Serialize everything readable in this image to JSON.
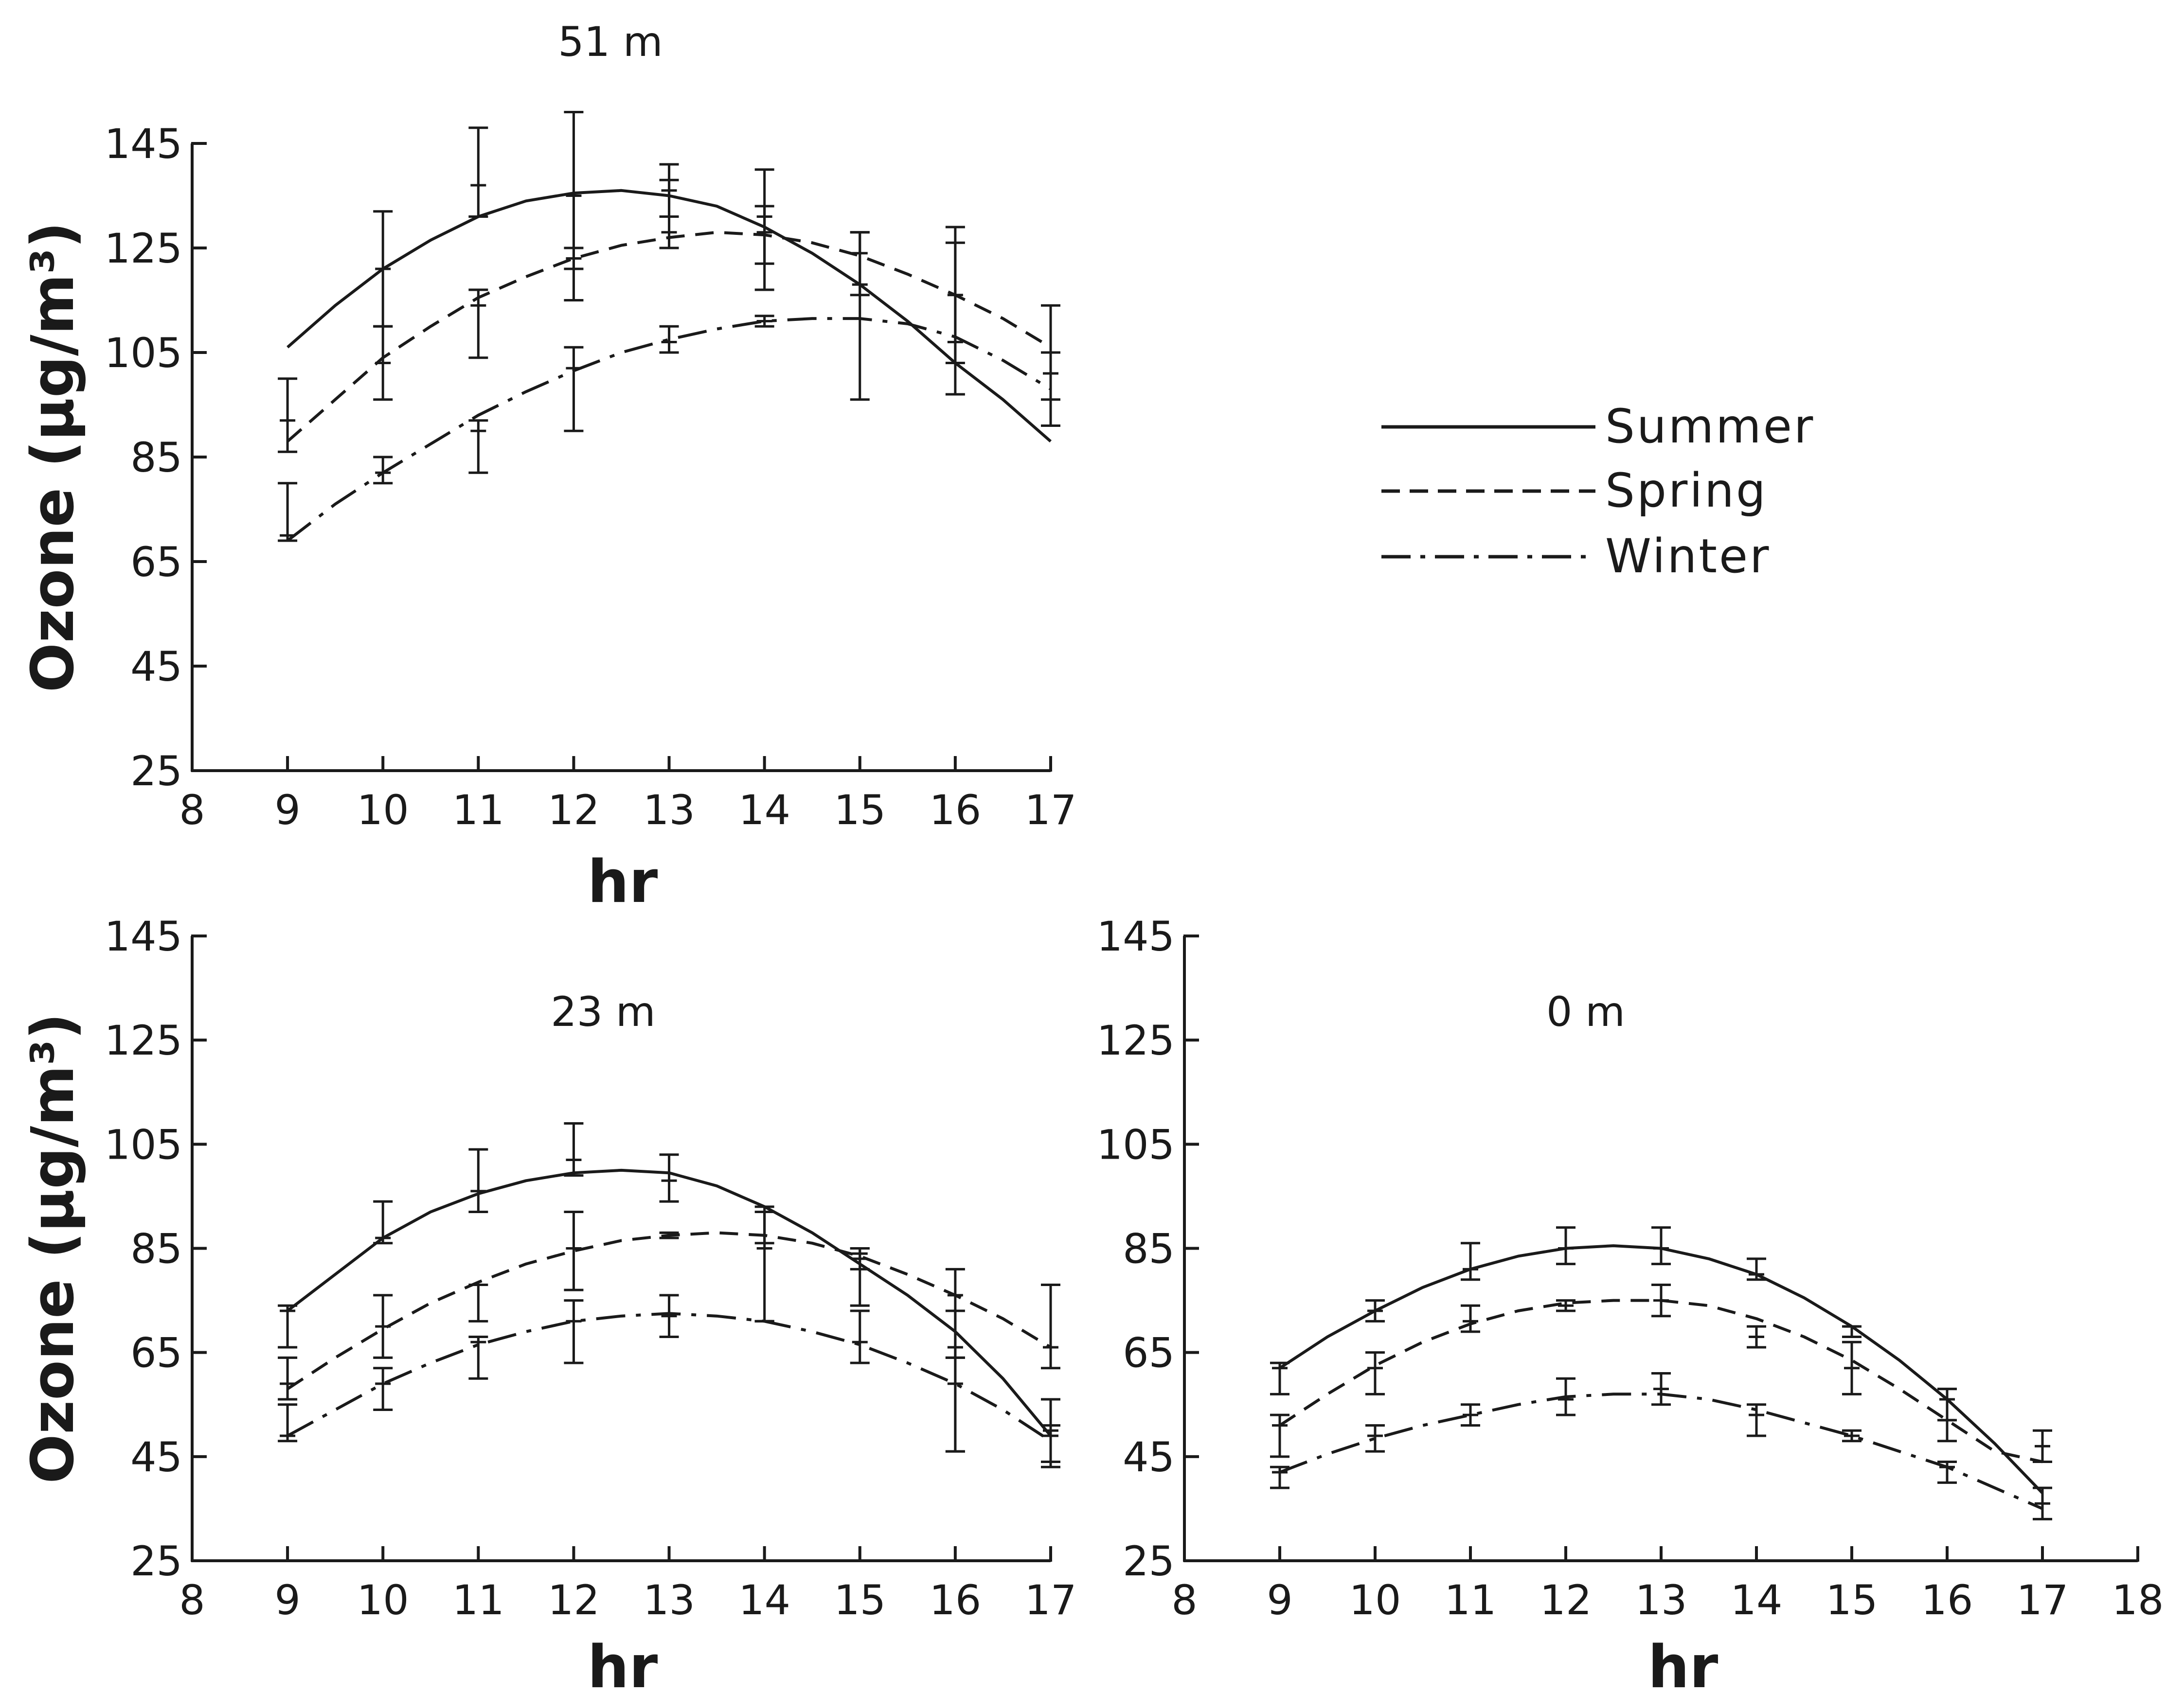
{
  "colors": {
    "ink": "#1a1a1a",
    "background": "#ffffff"
  },
  "legend": {
    "placement": "right of top panel",
    "items": [
      {
        "label": "Summer",
        "style": "solid"
      },
      {
        "label": "Spring",
        "style": "dashed"
      },
      {
        "label": "Winter",
        "style": "dash-dot"
      }
    ]
  },
  "chart_data": [
    {
      "type": "line",
      "title": "51 m",
      "xlabel": "hr",
      "ylabel": "Ozone (μg/m³)",
      "xlim": [
        8,
        17
      ],
      "ylim": [
        25,
        145
      ],
      "xticks": [
        8,
        9,
        10,
        11,
        12,
        13,
        14,
        15,
        16,
        17
      ],
      "yticks": [
        25,
        45,
        65,
        85,
        105,
        125,
        145
      ],
      "grid": false,
      "series": [
        {
          "name": "Summer",
          "style": "solid",
          "curve_x": [
            9,
            9.5,
            10,
            10.5,
            11,
            11.5,
            12,
            12.5,
            13,
            13.5,
            14,
            14.5,
            15,
            15.5,
            16,
            16.5,
            17
          ],
          "curve_y": [
            106,
            114,
            121,
            126.5,
            131,
            134,
            135.5,
            136,
            135,
            133,
            129,
            124,
            118,
            111,
            103,
            96,
            88
          ],
          "points": [
            {
              "x": 10,
              "y": 121,
              "lo": 110,
              "hi": 132
            },
            {
              "x": 11,
              "y": 137,
              "lo": 131,
              "hi": 148
            },
            {
              "x": 12,
              "y": 135,
              "lo": 121,
              "hi": 151
            },
            {
              "x": 13,
              "y": 136,
              "lo": 131,
              "hi": 141
            },
            {
              "x": 14,
              "y": 131,
              "lo": 122,
              "hi": 140
            },
            {
              "x": 15,
              "y": 118,
              "lo": 96,
              "hi": 128
            },
            {
              "x": 16,
              "y": 107,
              "lo": 97,
              "hi": 129
            },
            {
              "x": 17,
              "y": 105,
              "lo": 96,
              "hi": 114
            }
          ]
        },
        {
          "name": "Spring",
          "style": "dashed",
          "curve_x": [
            9,
            9.5,
            10,
            10.5,
            11,
            11.5,
            12,
            12.5,
            13,
            13.5,
            14,
            14.5,
            15,
            15.5,
            16,
            16.5,
            17
          ],
          "curve_y": [
            88,
            96,
            104,
            110,
            115.5,
            119.5,
            123,
            125.5,
            127,
            128,
            127.5,
            126,
            123.5,
            120,
            116,
            111.5,
            106
          ],
          "points": [
            {
              "x": 9,
              "y": 92,
              "lo": 86,
              "hi": 100
            },
            {
              "x": 10,
              "y": 103,
              "lo": 96,
              "hi": 110
            },
            {
              "x": 11,
              "y": 114,
              "lo": 104,
              "hi": 117
            },
            {
              "x": 12,
              "y": 123,
              "lo": 115,
              "hi": 125
            },
            {
              "x": 13,
              "y": 128,
              "lo": 125,
              "hi": 138
            },
            {
              "x": 14,
              "y": 128,
              "lo": 117,
              "hi": 133
            },
            {
              "x": 15,
              "y": 124,
              "lo": 116,
              "hi": 128
            },
            {
              "x": 16,
              "y": 116,
              "lo": 103,
              "hi": 126
            },
            {
              "x": 17,
              "y": 101,
              "lo": 91,
              "hi": 105
            }
          ]
        },
        {
          "name": "Winter",
          "style": "dash-dot",
          "curve_x": [
            9,
            9.5,
            10,
            10.5,
            11,
            11.5,
            12,
            12.5,
            13,
            13.5,
            14,
            14.5,
            15,
            15.5,
            16,
            16.5,
            17
          ],
          "curve_y": [
            69,
            76,
            82,
            87.5,
            93,
            97.5,
            101.5,
            105,
            107.5,
            109.5,
            111,
            111.5,
            111.5,
            110.5,
            108,
            103.5,
            98
          ],
          "points": [
            {
              "x": 9,
              "y": 70,
              "lo": 69,
              "hi": 80
            },
            {
              "x": 10,
              "y": 82,
              "lo": 80,
              "hi": 85
            },
            {
              "x": 11,
              "y": 90,
              "lo": 82,
              "hi": 92
            },
            {
              "x": 12,
              "y": 102,
              "lo": 90,
              "hi": 106
            },
            {
              "x": 13,
              "y": 107,
              "lo": 105,
              "hi": 110
            },
            {
              "x": 14,
              "y": 111,
              "lo": 110,
              "hi": 112
            }
          ]
        }
      ]
    },
    {
      "type": "line",
      "title": "23 m",
      "xlabel": "hr",
      "ylabel": "Ozone (μg/m³)",
      "xlim": [
        8,
        17
      ],
      "ylim": [
        25,
        145
      ],
      "xticks": [
        8,
        9,
        10,
        11,
        12,
        13,
        14,
        15,
        16,
        17
      ],
      "yticks": [
        25,
        45,
        65,
        85,
        105,
        125,
        145
      ],
      "grid": false,
      "series": [
        {
          "name": "Summer",
          "style": "solid",
          "curve_x": [
            9,
            9.5,
            10,
            10.5,
            11,
            11.5,
            12,
            12.5,
            13,
            13.5,
            14,
            14.5,
            15,
            15.5,
            16,
            16.5,
            17
          ],
          "curve_y": [
            73,
            80,
            87,
            92,
            95.5,
            98,
            99.5,
            100,
            99.5,
            97,
            93,
            88,
            82,
            76,
            69,
            60,
            49
          ],
          "points": [
            {
              "x": 9,
              "y": 73,
              "lo": 66,
              "hi": 74
            },
            {
              "x": 10,
              "y": 87,
              "lo": 86,
              "hi": 94
            },
            {
              "x": 11,
              "y": 96,
              "lo": 92,
              "hi": 104
            },
            {
              "x": 12,
              "y": 102,
              "lo": 99,
              "hi": 109
            },
            {
              "x": 13,
              "y": 98,
              "lo": 94,
              "hi": 103
            },
            {
              "x": 14,
              "y": 92,
              "lo": 86,
              "hi": 93
            },
            {
              "x": 15,
              "y": 84,
              "lo": 81,
              "hi": 85
            },
            {
              "x": 16,
              "y": 66,
              "lo": 64,
              "hi": 73
            },
            {
              "x": 17,
              "y": 50,
              "lo": 43,
              "hi": 56
            }
          ]
        },
        {
          "name": "Spring",
          "style": "dashed",
          "curve_x": [
            9,
            9.5,
            10,
            10.5,
            11,
            11.5,
            12,
            12.5,
            13,
            13.5,
            14,
            14.5,
            15,
            15.5,
            16,
            16.5,
            17
          ],
          "curve_y": [
            58,
            64,
            69.5,
            74.5,
            78.5,
            82,
            84.5,
            86.5,
            87.5,
            88,
            87.5,
            86,
            83.5,
            80,
            76,
            71.5,
            66
          ],
          "points": [
            {
              "x": 9,
              "y": 59,
              "lo": 56,
              "hi": 64
            },
            {
              "x": 10,
              "y": 70,
              "lo": 64,
              "hi": 76
            },
            {
              "x": 11,
              "y": 78,
              "lo": 71,
              "hi": 78
            },
            {
              "x": 12,
              "y": 85,
              "lo": 77,
              "hi": 92
            },
            {
              "x": 13,
              "y": 88,
              "lo": 87,
              "hi": 88
            },
            {
              "x": 14,
              "y": 85,
              "lo": 71,
              "hi": 92
            },
            {
              "x": 15,
              "y": 83,
              "lo": 74,
              "hi": 85
            },
            {
              "x": 16,
              "y": 76,
              "lo": 46,
              "hi": 81
            },
            {
              "x": 17,
              "y": 66,
              "lo": 62,
              "hi": 78
            }
          ]
        },
        {
          "name": "Winter",
          "style": "dash-dot",
          "curve_x": [
            9,
            9.5,
            10,
            10.5,
            11,
            11.5,
            12,
            12.5,
            13,
            13.5,
            14,
            14.5,
            15,
            15.5,
            16,
            16.5,
            17
          ],
          "curve_y": [
            49,
            54,
            59,
            63,
            66.5,
            69,
            71,
            72,
            72.5,
            72,
            71,
            69,
            66.5,
            63,
            59,
            54,
            48
          ],
          "points": [
            {
              "x": 9,
              "y": 49,
              "lo": 48,
              "hi": 55
            },
            {
              "x": 10,
              "y": 59,
              "lo": 54,
              "hi": 62
            },
            {
              "x": 11,
              "y": 67,
              "lo": 60,
              "hi": 68
            },
            {
              "x": 12,
              "y": 71,
              "lo": 63,
              "hi": 75
            },
            {
              "x": 13,
              "y": 72,
              "lo": 68,
              "hi": 76
            },
            {
              "x": 14,
              "y": 71,
              "lo": 71,
              "hi": 71
            },
            {
              "x": 15,
              "y": 67,
              "lo": 63,
              "hi": 73
            },
            {
              "x": 16,
              "y": 59,
              "lo": 46,
              "hi": 64
            },
            {
              "x": 17,
              "y": 49,
              "lo": 44,
              "hi": 51
            }
          ]
        }
      ]
    },
    {
      "type": "line",
      "title": "0 m",
      "xlabel": "hr",
      "ylabel": "",
      "xlim": [
        8,
        18
      ],
      "ylim": [
        25,
        145
      ],
      "xticks": [
        8,
        9,
        10,
        11,
        12,
        13,
        14,
        15,
        16,
        17,
        18
      ],
      "yticks": [
        25,
        45,
        65,
        85,
        105,
        125,
        145
      ],
      "grid": false,
      "series": [
        {
          "name": "Summer",
          "style": "solid",
          "curve_x": [
            9,
            9.5,
            10,
            10.5,
            11,
            11.5,
            12,
            12.5,
            13,
            13.5,
            14,
            14.5,
            15,
            15.5,
            16,
            16.5,
            17
          ],
          "curve_y": [
            62,
            68,
            73,
            77.5,
            81,
            83.5,
            85,
            85.5,
            85,
            83,
            80,
            75.5,
            70,
            63.5,
            56,
            47.5,
            38
          ],
          "points": [
            {
              "x": 9,
              "y": 62,
              "lo": 57,
              "hi": 63
            },
            {
              "x": 10,
              "y": 73,
              "lo": 71,
              "hi": 75
            },
            {
              "x": 11,
              "y": 81,
              "lo": 79,
              "hi": 86
            },
            {
              "x": 12,
              "y": 85,
              "lo": 82,
              "hi": 89
            },
            {
              "x": 13,
              "y": 85,
              "lo": 82,
              "hi": 89
            },
            {
              "x": 14,
              "y": 80,
              "lo": 79,
              "hi": 83
            },
            {
              "x": 15,
              "y": 70,
              "lo": 68,
              "hi": 70
            },
            {
              "x": 16,
              "y": 56,
              "lo": 52,
              "hi": 58
            }
          ]
        },
        {
          "name": "Spring",
          "style": "dashed",
          "curve_x": [
            9,
            9.5,
            10,
            10.5,
            11,
            11.5,
            12,
            12.5,
            13,
            13.5,
            14,
            14.5,
            15,
            15.5,
            16,
            16.5,
            17
          ],
          "curve_y": [
            51,
            57,
            62.5,
            67,
            70.5,
            73,
            74.5,
            75,
            75,
            74,
            71.5,
            68,
            63.5,
            58,
            52,
            46,
            44
          ],
          "points": [
            {
              "x": 9,
              "y": 51,
              "lo": 45,
              "hi": 53
            },
            {
              "x": 10,
              "y": 62,
              "lo": 57,
              "hi": 65
            },
            {
              "x": 11,
              "y": 71,
              "lo": 69,
              "hi": 74
            },
            {
              "x": 12,
              "y": 74,
              "lo": 73,
              "hi": 75
            },
            {
              "x": 13,
              "y": 75,
              "lo": 72,
              "hi": 78
            },
            {
              "x": 14,
              "y": 68,
              "lo": 66,
              "hi": 70
            },
            {
              "x": 15,
              "y": 62,
              "lo": 57,
              "hi": 67
            },
            {
              "x": 16,
              "y": 52,
              "lo": 48,
              "hi": 58
            },
            {
              "x": 17,
              "y": 47,
              "lo": 44,
              "hi": 50
            }
          ]
        },
        {
          "name": "Winter",
          "style": "dash-dot",
          "curve_x": [
            9,
            9.5,
            10,
            10.5,
            11,
            11.5,
            12,
            12.5,
            13,
            13.5,
            14,
            14.5,
            15,
            15.5,
            16,
            16.5,
            17
          ],
          "curve_y": [
            42,
            45.5,
            48.5,
            51,
            53,
            55,
            56.5,
            57,
            57,
            56,
            54,
            51.5,
            49,
            46,
            43,
            39,
            35
          ],
          "points": [
            {
              "x": 9,
              "y": 42,
              "lo": 39,
              "hi": 43
            },
            {
              "x": 10,
              "y": 49,
              "lo": 46,
              "hi": 51
            },
            {
              "x": 11,
              "y": 53,
              "lo": 51,
              "hi": 55
            },
            {
              "x": 12,
              "y": 56,
              "lo": 53,
              "hi": 60
            },
            {
              "x": 13,
              "y": 58,
              "lo": 55,
              "hi": 61
            },
            {
              "x": 14,
              "y": 53,
              "lo": 49,
              "hi": 55
            },
            {
              "x": 15,
              "y": 49,
              "lo": 48,
              "hi": 50
            },
            {
              "x": 16,
              "y": 43,
              "lo": 40,
              "hi": 44
            },
            {
              "x": 17,
              "y": 36,
              "lo": 33,
              "hi": 39
            }
          ]
        }
      ]
    }
  ]
}
